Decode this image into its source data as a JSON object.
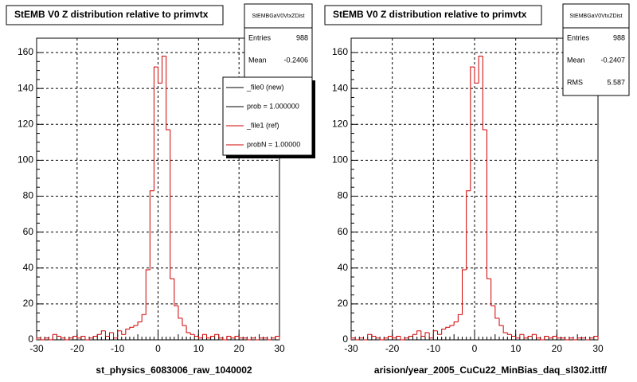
{
  "chart_data": [
    {
      "type": "histogram",
      "title": "StEMB V0 Z distribution relative to primvtx",
      "xlabel": "st_physics_6083006_raw_1040002",
      "color": "#d00000",
      "grid": true,
      "bins": [
        -30,
        -29,
        -28,
        -27,
        -26,
        -25,
        -24,
        -23,
        -22,
        -21,
        -20,
        -19,
        -18,
        -17,
        -16,
        -15,
        -14,
        -13,
        -12,
        -11,
        -10,
        -9,
        -8,
        -7,
        -6,
        -5,
        -4,
        -3,
        -2,
        -1,
        0,
        1,
        2,
        3,
        4,
        5,
        6,
        7,
        8,
        9,
        10,
        11,
        12,
        13,
        14,
        15,
        16,
        17,
        18,
        19,
        20,
        21,
        22,
        23,
        24,
        25,
        26,
        27,
        28,
        29,
        30
      ],
      "counts": [
        1,
        0,
        1,
        0,
        3,
        2,
        1,
        0,
        1,
        2,
        1,
        2,
        0,
        1,
        2,
        3,
        5,
        2,
        4,
        1,
        5,
        3,
        6,
        7,
        8,
        10,
        14,
        39,
        83,
        152,
        143,
        158,
        117,
        34,
        19,
        12,
        8,
        4,
        3,
        2,
        1,
        3,
        1,
        2,
        3,
        1,
        0,
        2,
        1,
        2,
        1,
        1,
        0,
        1,
        0,
        1,
        1,
        0,
        1,
        2
      ],
      "xlim": [
        -30,
        30
      ],
      "ylim": [
        0,
        168
      ],
      "xticks": [
        -30,
        -20,
        -10,
        0,
        10,
        20,
        30
      ],
      "yticks": [
        0,
        20,
        40,
        60,
        80,
        100,
        120,
        140,
        160
      ],
      "stats": {
        "title": "StEMBGaV0VtxZDist",
        "entries_label": "Entries",
        "entries": 988,
        "mean_label": "Mean",
        "mean": -0.2406
      },
      "legend": [
        {
          "label": "_file0 (new)",
          "color": "#000000"
        },
        {
          "label": "prob = 1.000000",
          "color": "#000000"
        },
        {
          "label": "_file1 (ref)",
          "color": "#d00000"
        },
        {
          "label": "probN = 1.00000",
          "color": "#d00000"
        }
      ]
    },
    {
      "type": "histogram",
      "title": "StEMB V0 Z distribution relative to primvtx",
      "xlabel": "arision/year_2005_CuCu22_MinBias_daq_sl302.ittf/",
      "color": "#d00000",
      "grid": true,
      "bins": [
        -30,
        -29,
        -28,
        -27,
        -26,
        -25,
        -24,
        -23,
        -22,
        -21,
        -20,
        -19,
        -18,
        -17,
        -16,
        -15,
        -14,
        -13,
        -12,
        -11,
        -10,
        -9,
        -8,
        -7,
        -6,
        -5,
        -4,
        -3,
        -2,
        -1,
        0,
        1,
        2,
        3,
        4,
        5,
        6,
        7,
        8,
        9,
        10,
        11,
        12,
        13,
        14,
        15,
        16,
        17,
        18,
        19,
        20,
        21,
        22,
        23,
        24,
        25,
        26,
        27,
        28,
        29,
        30
      ],
      "counts": [
        1,
        0,
        1,
        0,
        3,
        2,
        1,
        0,
        1,
        2,
        1,
        2,
        0,
        1,
        2,
        3,
        5,
        2,
        4,
        1,
        5,
        3,
        6,
        7,
        8,
        10,
        14,
        39,
        83,
        152,
        143,
        158,
        117,
        34,
        19,
        12,
        8,
        4,
        3,
        2,
        1,
        3,
        1,
        2,
        3,
        1,
        0,
        2,
        1,
        2,
        1,
        1,
        0,
        1,
        0,
        1,
        1,
        0,
        1,
        2
      ],
      "xlim": [
        -30,
        30
      ],
      "ylim": [
        0,
        168
      ],
      "xticks": [
        -30,
        -20,
        -10,
        0,
        10,
        20,
        30
      ],
      "yticks": [
        0,
        20,
        40,
        60,
        80,
        100,
        120,
        140,
        160
      ],
      "stats": {
        "title": "StEMBGaV0VtxZDist",
        "entries_label": "Entries",
        "entries": 988,
        "mean_label": "Mean",
        "mean": -0.2407,
        "rms_label": "RMS",
        "rms": 5.587
      }
    }
  ]
}
